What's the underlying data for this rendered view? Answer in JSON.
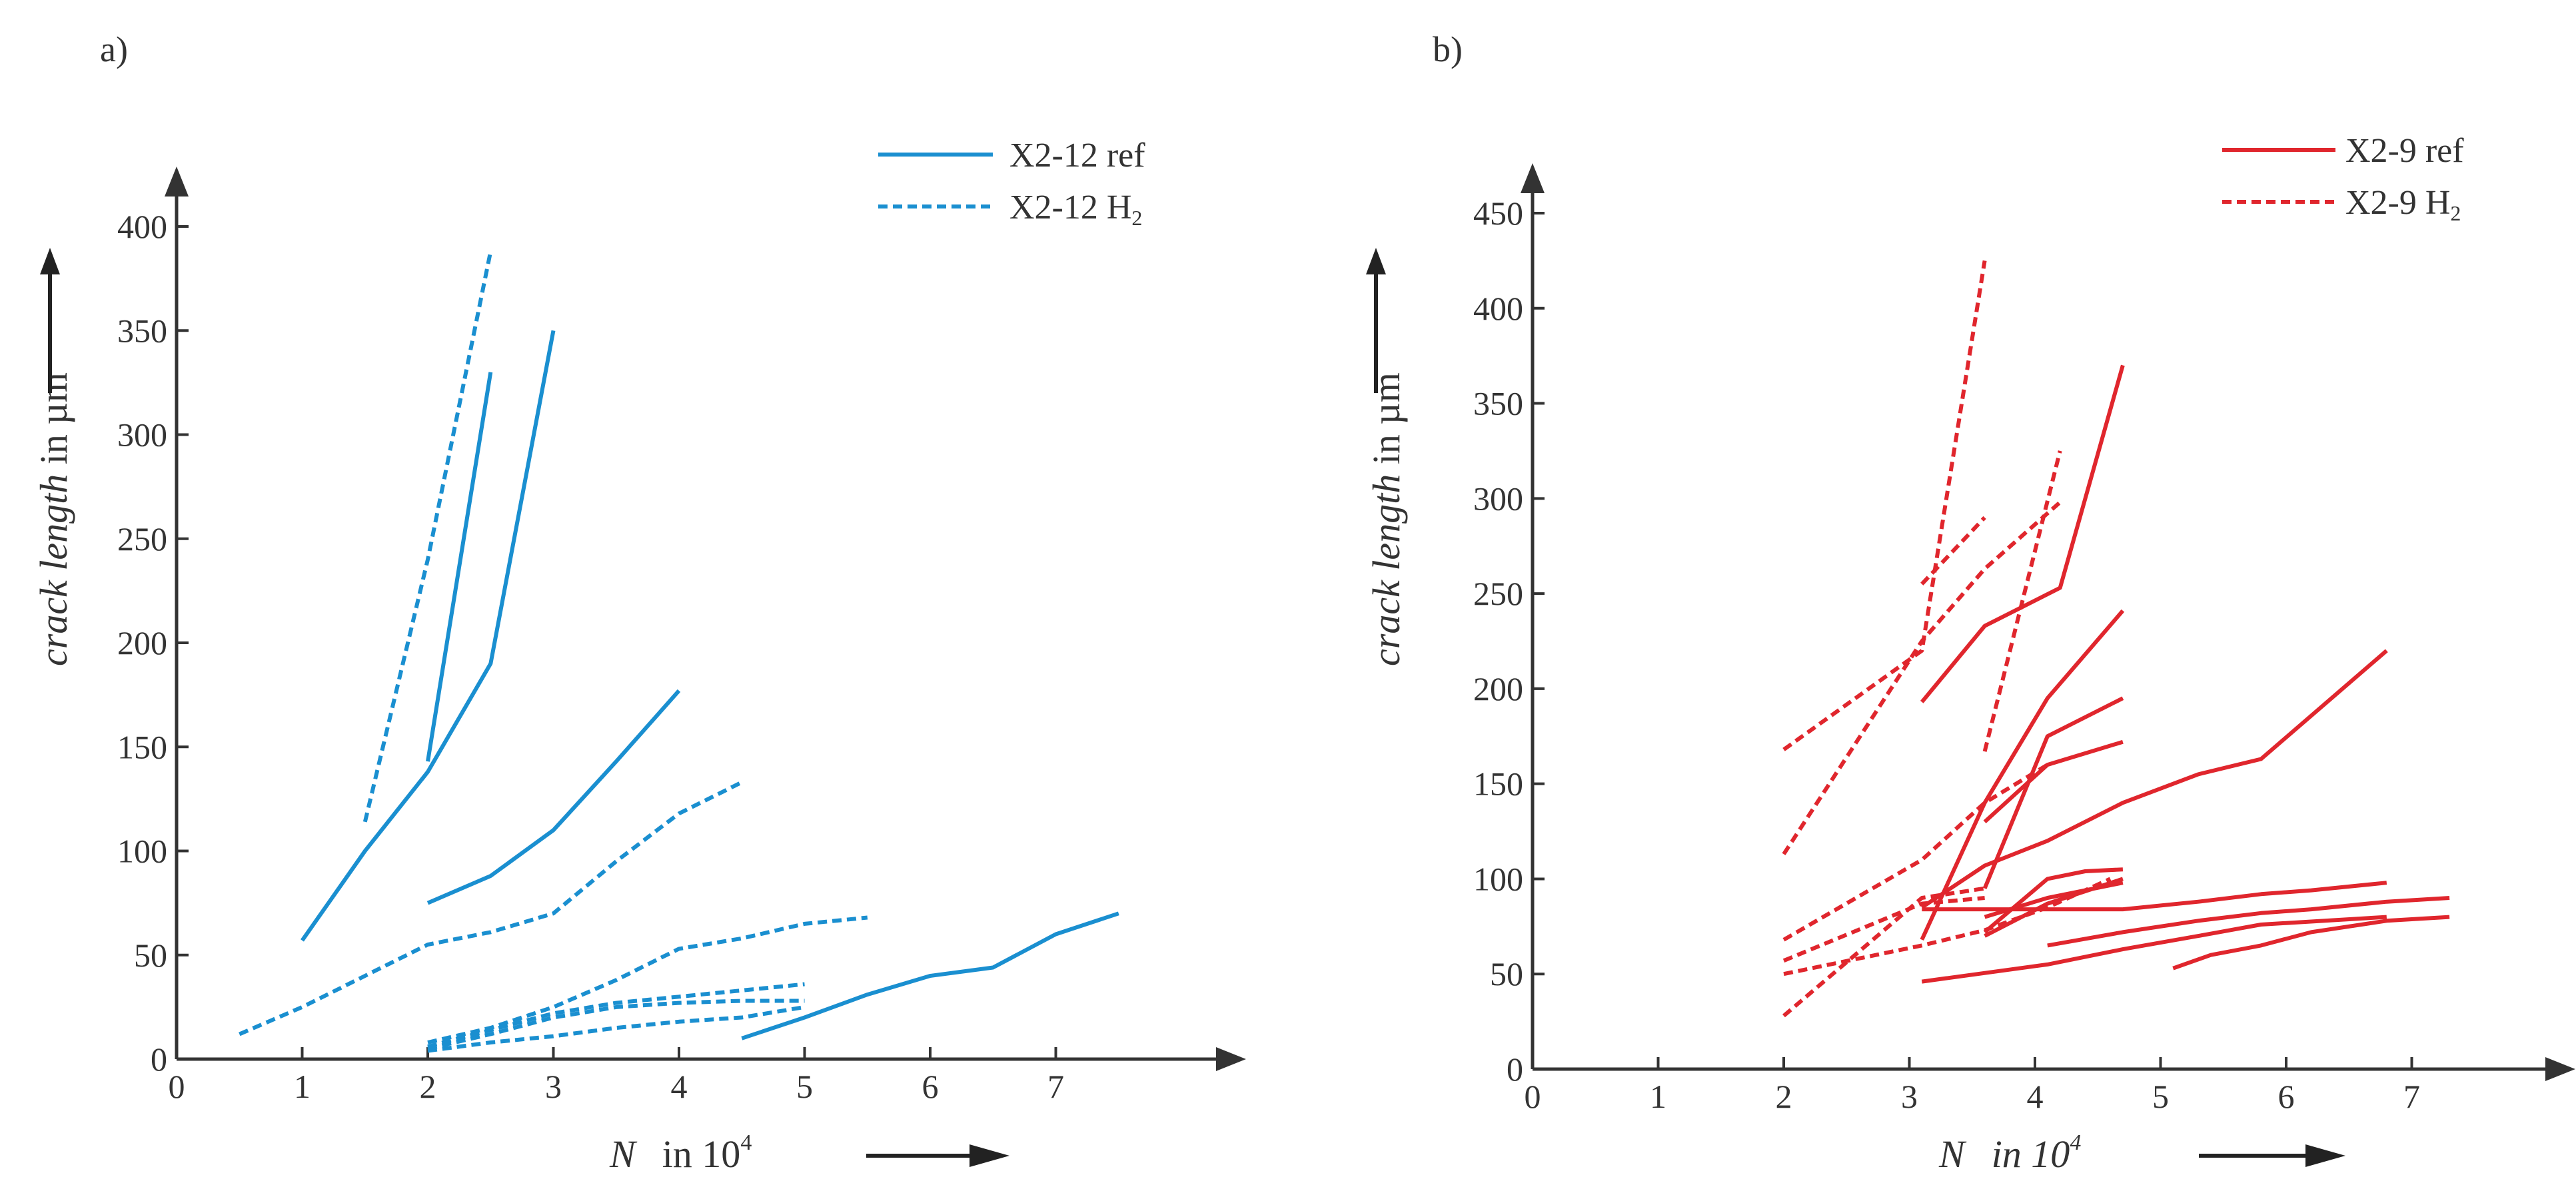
{
  "chart_data": [
    {
      "type": "line",
      "panel_label": "a)",
      "color": "#1a8fd0",
      "xlim": [
        0,
        8
      ],
      "ylim": [
        0,
        400
      ],
      "xticks": [
        "0",
        "1",
        "2",
        "3",
        "4",
        "5",
        "6",
        "7"
      ],
      "yticks": [
        "0",
        "50",
        "100",
        "150",
        "200",
        "250",
        "300",
        "350",
        "400"
      ],
      "ylabel_italic": "crack length",
      "ylabel_rest": " in µm",
      "xlabel_var": "N",
      "xlabel_unit": "in 10",
      "xlabel_exp": "4",
      "legend": [
        {
          "label": "X2-12 ref",
          "sub": "",
          "style": "solid"
        },
        {
          "label": "X2-12 H",
          "sub": "2",
          "style": "dashed"
        }
      ],
      "series": [
        {
          "name": "X2-12 ref",
          "style": "solid",
          "points": [
            [
              1.0,
              57
            ],
            [
              1.5,
              100
            ],
            [
              2.0,
              138
            ],
            [
              2.5,
              190
            ],
            [
              3.0,
              350
            ]
          ]
        },
        {
          "name": "X2-12 ref",
          "style": "solid",
          "points": [
            [
              2.0,
              143
            ],
            [
              2.5,
              330
            ]
          ]
        },
        {
          "name": "X2-12 ref",
          "style": "solid",
          "points": [
            [
              2.0,
              75
            ],
            [
              2.5,
              88
            ],
            [
              3.0,
              110
            ],
            [
              3.5,
              143
            ],
            [
              4.0,
              177
            ]
          ]
        },
        {
          "name": "X2-12 ref",
          "style": "solid",
          "points": [
            [
              4.5,
              10
            ],
            [
              5.0,
              20
            ],
            [
              5.5,
              31
            ],
            [
              6.0,
              40
            ],
            [
              6.5,
              44
            ],
            [
              7.0,
              60
            ],
            [
              7.5,
              70
            ]
          ]
        },
        {
          "name": "X2-12 H2",
          "style": "dashed",
          "points": [
            [
              1.5,
              114
            ],
            [
              2.0,
              240
            ],
            [
              2.5,
              388
            ]
          ]
        },
        {
          "name": "X2-12 H2",
          "style": "dashed",
          "points": [
            [
              0.5,
              12
            ],
            [
              1.0,
              25
            ],
            [
              1.5,
              40
            ],
            [
              2.0,
              55
            ],
            [
              2.5,
              61
            ],
            [
              3.0,
              70
            ],
            [
              3.5,
              95
            ],
            [
              4.0,
              118
            ],
            [
              4.5,
              133
            ]
          ]
        },
        {
          "name": "X2-12 H2",
          "style": "dashed",
          "points": [
            [
              2.0,
              8
            ],
            [
              2.5,
              15
            ],
            [
              3.0,
              25
            ],
            [
              3.5,
              38
            ],
            [
              4.0,
              53
            ],
            [
              4.5,
              58
            ],
            [
              5.0,
              65
            ],
            [
              5.5,
              68
            ]
          ]
        },
        {
          "name": "X2-12 H2",
          "style": "dashed",
          "points": [
            [
              2.0,
              5
            ],
            [
              2.5,
              12
            ],
            [
              3.0,
              20
            ],
            [
              3.5,
              25
            ],
            [
              4.0,
              27
            ],
            [
              4.5,
              28
            ],
            [
              5.0,
              28
            ]
          ]
        },
        {
          "name": "X2-12 H2",
          "style": "dashed",
          "points": [
            [
              2.0,
              4
            ],
            [
              2.5,
              8
            ],
            [
              3.0,
              11
            ],
            [
              3.5,
              15
            ],
            [
              4.0,
              18
            ],
            [
              4.5,
              20
            ],
            [
              5.0,
              25
            ]
          ]
        },
        {
          "name": "X2-12 H2",
          "style": "dashed",
          "points": [
            [
              2.0,
              6
            ],
            [
              2.5,
              14
            ],
            [
              3.0,
              22
            ],
            [
              3.5,
              27
            ],
            [
              4.0,
              30
            ],
            [
              4.5,
              33
            ],
            [
              5.0,
              36
            ]
          ]
        }
      ]
    },
    {
      "type": "line",
      "panel_label": "b)",
      "color": "#e0262d",
      "xlim": [
        0,
        8
      ],
      "ylim": [
        0,
        450
      ],
      "xticks": [
        "0",
        "1",
        "2",
        "3",
        "4",
        "5",
        "6",
        "7"
      ],
      "yticks": [
        "0",
        "50",
        "100",
        "150",
        "200",
        "250",
        "300",
        "350",
        "400",
        "450"
      ],
      "ylabel_italic": "crack length",
      "ylabel_rest": " in µm",
      "xlabel_var": "N",
      "xlabel_unit": "in 10",
      "xlabel_exp": "4",
      "legend": [
        {
          "label": "X2-9 ref",
          "sub": "",
          "style": "solid"
        },
        {
          "label": "X2-9 H",
          "sub": "2",
          "style": "dashed"
        }
      ],
      "series": [
        {
          "name": "X2-9 ref",
          "style": "solid",
          "points": [
            [
              3.1,
              193
            ],
            [
              3.6,
              233
            ],
            [
              4.2,
              253
            ],
            [
              4.7,
              370
            ]
          ]
        },
        {
          "name": "X2-9 ref",
          "style": "solid",
          "points": [
            [
              3.1,
              85
            ],
            [
              3.6,
              107
            ],
            [
              4.1,
              120
            ],
            [
              4.7,
              140
            ],
            [
              5.3,
              155
            ],
            [
              5.8,
              163
            ],
            [
              6.8,
              220
            ]
          ]
        },
        {
          "name": "X2-9 ref",
          "style": "solid",
          "points": [
            [
              3.1,
              68
            ],
            [
              3.6,
              140
            ],
            [
              4.1,
              195
            ],
            [
              4.7,
              241
            ]
          ]
        },
        {
          "name": "X2-9 ref",
          "style": "solid",
          "points": [
            [
              3.1,
              46
            ],
            [
              4.1,
              55
            ],
            [
              4.7,
              63
            ],
            [
              5.3,
              70
            ],
            [
              5.8,
              76
            ],
            [
              6.8,
              80
            ]
          ]
        },
        {
          "name": "X2-9 ref",
          "style": "solid",
          "points": [
            [
              4.1,
              65
            ],
            [
              4.7,
              72
            ],
            [
              5.3,
              78
            ],
            [
              5.8,
              82
            ],
            [
              6.2,
              84
            ],
            [
              6.8,
              88
            ],
            [
              7.3,
              90
            ]
          ]
        },
        {
          "name": "X2-9 ref",
          "style": "solid",
          "points": [
            [
              5.1,
              53
            ],
            [
              5.4,
              60
            ],
            [
              5.8,
              65
            ],
            [
              6.2,
              72
            ],
            [
              6.8,
              78
            ],
            [
              7.3,
              80
            ]
          ]
        },
        {
          "name": "X2-9 ref",
          "style": "solid",
          "points": [
            [
              3.1,
              84
            ],
            [
              4.1,
              84
            ],
            [
              4.7,
              84
            ],
            [
              5.3,
              88
            ],
            [
              5.8,
              92
            ],
            [
              6.2,
              94
            ],
            [
              6.8,
              98
            ]
          ]
        },
        {
          "name": "X2-9 ref",
          "style": "solid",
          "points": [
            [
              3.6,
              72
            ],
            [
              4.1,
              100
            ],
            [
              4.4,
              104
            ],
            [
              4.7,
              105
            ]
          ]
        },
        {
          "name": "X2-9 ref",
          "style": "solid",
          "points": [
            [
              3.6,
              80
            ],
            [
              4.1,
              90
            ],
            [
              4.7,
              98
            ]
          ]
        },
        {
          "name": "X2-9 ref",
          "style": "solid",
          "points": [
            [
              3.6,
              70
            ],
            [
              4.1,
              87
            ],
            [
              4.7,
              100
            ]
          ]
        },
        {
          "name": "X2-9 ref",
          "style": "solid",
          "points": [
            [
              3.6,
              95
            ],
            [
              4.1,
              175
            ],
            [
              4.7,
              195
            ]
          ]
        },
        {
          "name": "X2-9 ref",
          "style": "solid",
          "points": [
            [
              3.6,
              130
            ],
            [
              4.1,
              160
            ],
            [
              4.7,
              172
            ]
          ]
        },
        {
          "name": "X2-9 H2",
          "style": "dashed",
          "points": [
            [
              2.0,
              168
            ],
            [
              3.1,
              220
            ],
            [
              3.6,
              425
            ]
          ]
        },
        {
          "name": "X2-9 H2",
          "style": "dashed",
          "points": [
            [
              2.0,
              113
            ],
            [
              3.1,
              225
            ],
            [
              3.6,
              263
            ],
            [
              4.2,
              298
            ]
          ]
        },
        {
          "name": "X2-9 H2",
          "style": "dashed",
          "points": [
            [
              3.1,
              255
            ],
            [
              3.6,
              290
            ]
          ]
        },
        {
          "name": "X2-9 H2",
          "style": "dashed",
          "points": [
            [
              3.6,
              167
            ],
            [
              4.2,
              325
            ]
          ]
        },
        {
          "name": "X2-9 H2",
          "style": "dashed",
          "points": [
            [
              2.0,
              68
            ],
            [
              3.1,
              110
            ],
            [
              3.6,
              140
            ],
            [
              4.1,
              160
            ]
          ]
        },
        {
          "name": "X2-9 H2",
          "style": "dashed",
          "points": [
            [
              2.0,
              28
            ],
            [
              3.1,
              90
            ],
            [
              3.6,
              95
            ]
          ]
        },
        {
          "name": "X2-9 H2",
          "style": "dashed",
          "points": [
            [
              2.0,
              50
            ],
            [
              3.1,
              65
            ],
            [
              3.6,
              73
            ],
            [
              4.1,
              85
            ],
            [
              4.6,
              100
            ]
          ]
        },
        {
          "name": "X2-9 H2",
          "style": "dashed",
          "points": [
            [
              2.0,
              57
            ],
            [
              3.1,
              87
            ],
            [
              3.6,
              90
            ]
          ]
        }
      ]
    }
  ]
}
